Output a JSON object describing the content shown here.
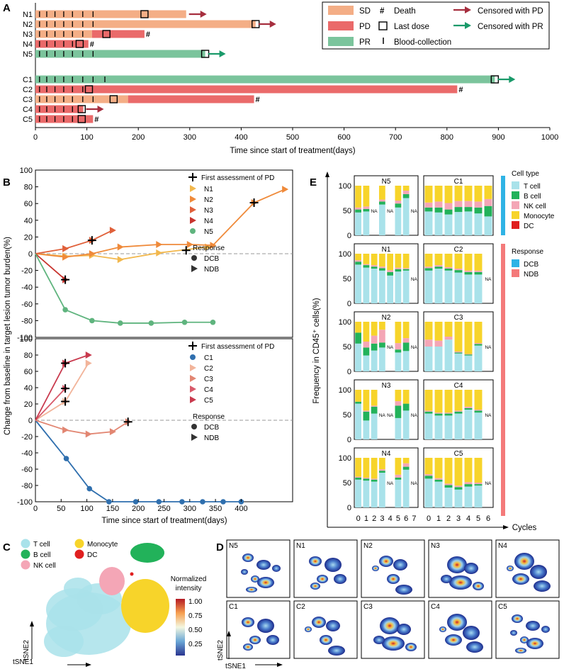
{
  "colors": {
    "SD": "#f4ae86",
    "PD": "#ea6a6a",
    "PR": "#7bc49c",
    "censoredPD": "#a62e3e",
    "censoredPR": "#1a9a6a",
    "dcb": "#3b7bb5",
    "tcell": "#a9e2ea",
    "bcell": "#22b25a",
    "nkcell": "#f4a6b6",
    "monocyte": "#f7d42a",
    "dc": "#e02020",
    "dcbBar": "#2fb3e5",
    "ndbBar": "#f47a7a"
  },
  "panels": {
    "A": "A",
    "B": "B",
    "C": "C",
    "D": "D",
    "E": "E"
  },
  "chart_data": [
    {
      "id": "A",
      "type": "swimmer",
      "xlabel": "Time since start of treatment(days)",
      "xlim": [
        0,
        1000
      ],
      "xticks": [
        "0",
        "100",
        "200",
        "300",
        "400",
        "500",
        "600",
        "700",
        "800",
        "900",
        "1000"
      ],
      "legend": {
        "SD": "SD",
        "PD": "PD",
        "PR": "PR",
        "death": "Death",
        "death_symbol": "#",
        "last_dose": "Last dose",
        "blood": "Blood-collection",
        "cens_pd": "Censored with PD",
        "cens_pr": "Censored with PR"
      },
      "patients": [
        {
          "name": "N1",
          "segments": [
            {
              "s": "SD",
              "from": 0,
              "to": 293
            }
          ],
          "last_dose": 212,
          "end": "censoredPD",
          "blood": [
            8,
            22,
            38,
            55,
            72,
            92,
            112
          ]
        },
        {
          "name": "N2",
          "segments": [
            {
              "s": "SD",
              "from": 0,
              "to": 428
            }
          ],
          "last_dose": 428,
          "end": "censoredPD",
          "blood": [
            8,
            22,
            38,
            55,
            72,
            92,
            112
          ]
        },
        {
          "name": "N3",
          "segments": [
            {
              "s": "SD",
              "from": 0,
              "to": 110
            },
            {
              "s": "PD",
              "from": 110,
              "to": 212
            }
          ],
          "last_dose": 138,
          "end": "death",
          "blood": [
            8,
            22,
            38,
            55,
            72,
            92
          ]
        },
        {
          "name": "N4",
          "segments": [
            {
              "s": "PD",
              "from": 0,
              "to": 103
            }
          ],
          "last_dose": 86,
          "end": "death",
          "blood": [
            8,
            22,
            38,
            55,
            72
          ]
        },
        {
          "name": "N5",
          "segments": [
            {
              "s": "PR",
              "from": 0,
              "to": 330
            }
          ],
          "last_dose": 330,
          "end": "censoredPR",
          "blood": [
            8,
            22,
            38,
            55,
            72,
            92,
            112
          ]
        },
        {
          "name": "C1",
          "segments": [
            {
              "s": "PR",
              "from": 0,
              "to": 893
            }
          ],
          "last_dose": 893,
          "end": "censoredPR",
          "blood": [
            8,
            22,
            38,
            55,
            72,
            92,
            112,
            135
          ]
        },
        {
          "name": "C2",
          "segments": [
            {
              "s": "PD",
              "from": 0,
              "to": 820
            }
          ],
          "last_dose": 104,
          "end": "death",
          "blood": [
            8,
            22,
            38,
            55,
            72,
            92
          ]
        },
        {
          "name": "C3",
          "segments": [
            {
              "s": "SD",
              "from": 0,
              "to": 180
            },
            {
              "s": "PD",
              "from": 180,
              "to": 425
            }
          ],
          "last_dose": 152,
          "end": "death",
          "blood": [
            8,
            22,
            38,
            55,
            72,
            92,
            112
          ]
        },
        {
          "name": "C4",
          "segments": [
            {
              "s": "PD",
              "from": 0,
              "to": 93
            }
          ],
          "last_dose": 90,
          "end": "censoredPD",
          "blood": [
            8,
            22,
            38,
            55,
            72
          ]
        },
        {
          "name": "C5",
          "segments": [
            {
              "s": "PD",
              "from": 0,
              "to": 112
            }
          ],
          "last_dose": 90,
          "end": "death",
          "blood": [
            8,
            22,
            38,
            55,
            72
          ]
        }
      ]
    },
    {
      "id": "B",
      "type": "line",
      "ylabel": "Change from baseline in target lesion tumor burden(%)",
      "xlabel": "Time since start of treatment(days)",
      "xlim": [
        0,
        500
      ],
      "ylim": [
        -100,
        100
      ],
      "yticks": [
        "100",
        "80",
        "60",
        "40",
        "20",
        "0",
        "-20",
        "-40",
        "-60",
        "-80",
        "-100"
      ],
      "xticks": [
        "0",
        "50",
        "100",
        "150",
        "200",
        "250",
        "300",
        "350",
        "400"
      ],
      "xticks_values": [
        0,
        50,
        100,
        150,
        200,
        250,
        300,
        350,
        400
      ],
      "legend_first": "First assessment of PD",
      "response_title": "Response",
      "dcb": "DCB",
      "ndb": "NDB",
      "top": {
        "series": [
          {
            "name": "N1",
            "color": "#f2b84e",
            "marker": "ndb",
            "x": [
              0,
              58,
              110,
              165,
              240,
              335
            ],
            "y": [
              0,
              -3,
              -2,
              -7,
              1,
              8
            ],
            "pd": null
          },
          {
            "name": "N2",
            "color": "#ef8a3a",
            "marker": "ndb",
            "x": [
              0,
              58,
              110,
              165,
              240,
              300,
              345,
              425,
              485
            ],
            "y": [
              0,
              -4,
              0,
              8,
              11,
              11,
              10,
              61,
              77
            ],
            "pd": [
              425,
              61
            ]
          },
          {
            "name": "N3",
            "color": "#e0603a",
            "marker": "ndb",
            "x": [
              0,
              58,
              110,
              150
            ],
            "y": [
              0,
              6,
              16,
              28
            ],
            "pd": [
              110,
              16
            ]
          },
          {
            "name": "N4",
            "color": "#c8342e",
            "marker": "ndb",
            "x": [
              0,
              58
            ],
            "y": [
              0,
              -31
            ],
            "pd": [
              58,
              -31
            ]
          },
          {
            "name": "N5",
            "color": "#5fb47e",
            "marker": "dcb",
            "x": [
              0,
              58,
              110,
              165,
              225,
              290,
              345
            ],
            "y": [
              0,
              -67,
              -80,
              -83,
              -83,
              -82,
              -82
            ],
            "pd": null
          }
        ],
        "extra_pd": [
          [
            293,
            4
          ]
        ]
      },
      "bottom": {
        "series": [
          {
            "name": "C1",
            "color": "#2f6fae",
            "marker": "dcb",
            "x": [
              0,
              60,
              105,
              143,
              195,
              240,
              285,
              325,
              365,
              400
            ],
            "y": [
              0,
              -47,
              -84,
              -100,
              -100,
              -100,
              -100,
              -100,
              -100,
              -100
            ],
            "pd": null
          },
          {
            "name": "C2",
            "color": "#f2b49a",
            "marker": "ndb",
            "x": [
              0,
              58,
              103
            ],
            "y": [
              0,
              23,
              70
            ],
            "pd": [
              58,
              23
            ]
          },
          {
            "name": "C3",
            "color": "#e28672",
            "marker": "ndb",
            "x": [
              0,
              58,
              103,
              150,
              180
            ],
            "y": [
              0,
              -12,
              -17,
              -14,
              -2
            ],
            "pd": [
              180,
              -2
            ]
          },
          {
            "name": "C4",
            "color": "#d85a6a",
            "marker": "ndb",
            "x": [
              0,
              58
            ],
            "y": [
              0,
              39
            ],
            "pd": [
              58,
              39
            ]
          },
          {
            "name": "C5",
            "color": "#c93a4e",
            "marker": "ndb",
            "x": [
              0,
              58,
              103
            ],
            "y": [
              0,
              70,
              80
            ],
            "pd": [
              58,
              70
            ]
          }
        ]
      }
    },
    {
      "id": "E",
      "type": "stacked-bar",
      "ylabel": "Frequency in CD45⁺ cells(%)",
      "xlabel": "Cycles",
      "cycles_left": [
        "0",
        "1",
        "2",
        "3",
        "4",
        "5",
        "6",
        "7"
      ],
      "cycles_right": [
        "0",
        "1",
        "2",
        "3",
        "4",
        "5",
        "6"
      ],
      "yticks": [
        "0",
        "50",
        "100"
      ],
      "na": "NA",
      "legend": {
        "cell_type_title": "Cell type",
        "cell_types": [
          "T cell",
          "B cell",
          "NK cell",
          "Monocyte",
          "DC"
        ],
        "response_title": "Response",
        "responses": [
          "DCB",
          "NDB"
        ]
      },
      "panels": [
        {
          "name": "N5",
          "bars": [
            [
              46,
              6,
              4,
              44,
              0
            ],
            [
              48,
              5,
              5,
              42,
              0
            ],
            null,
            [
              62,
              6,
              4,
              28,
              0
            ],
            null,
            [
              56,
              8,
              6,
              30,
              0
            ],
            [
              75,
              8,
              7,
              10,
              0
            ],
            null
          ]
        },
        {
          "name": "C1",
          "bars": [
            [
              48,
              8,
              10,
              34,
              0
            ],
            [
              46,
              10,
              12,
              32,
              0
            ],
            [
              42,
              10,
              13,
              35,
              0
            ],
            [
              47,
              10,
              12,
              31,
              0
            ],
            [
              48,
              9,
              12,
              31,
              0
            ],
            [
              44,
              12,
              12,
              32,
              0
            ],
            [
              38,
              21,
              14,
              27,
              0
            ]
          ]
        },
        {
          "name": "N1",
          "bars": [
            [
              78,
              6,
              3,
              13,
              0
            ],
            [
              72,
              5,
              2,
              21,
              0
            ],
            [
              70,
              4,
              3,
              23,
              0
            ],
            [
              66,
              5,
              3,
              26,
              0
            ],
            [
              56,
              7,
              4,
              33,
              0
            ],
            [
              64,
              5,
              3,
              28,
              0
            ],
            [
              66,
              3,
              2,
              29,
              0
            ],
            null
          ]
        },
        {
          "name": "C2",
          "bars": [
            [
              66,
              5,
              3,
              26,
              0
            ],
            [
              70,
              4,
              3,
              23,
              0
            ],
            [
              66,
              4,
              3,
              27,
              0
            ],
            [
              62,
              5,
              3,
              30,
              0
            ],
            [
              58,
              5,
              3,
              34,
              0
            ],
            [
              58,
              5,
              3,
              34,
              0
            ],
            null
          ]
        },
        {
          "name": "N2",
          "bars": [
            [
              56,
              22,
              0,
              22,
              0
            ],
            [
              32,
              16,
              12,
              40,
              0
            ],
            [
              42,
              14,
              16,
              28,
              0
            ],
            [
              48,
              10,
              26,
              16,
              0
            ],
            null,
            [
              38,
              6,
              13,
              43,
              0
            ],
            [
              41,
              17,
              9,
              33,
              0
            ],
            null
          ]
        },
        {
          "name": "C3",
          "bars": [
            [
              50,
              0,
              14,
              36,
              0
            ],
            [
              50,
              0,
              12,
              38,
              0
            ],
            [
              64,
              0,
              6,
              30,
              0
            ],
            [
              36,
              2,
              2,
              60,
              0
            ],
            [
              32,
              2,
              1,
              65,
              0
            ],
            [
              52,
              3,
              2,
              43,
              0
            ],
            null
          ]
        },
        {
          "name": "N3",
          "bars": [
            [
              72,
              4,
              0,
              24,
              0
            ],
            [
              38,
              18,
              2,
              42,
              0
            ],
            [
              52,
              14,
              2,
              32,
              0
            ],
            null,
            null,
            [
              43,
              25,
              9,
              23,
              0
            ],
            [
              58,
              14,
              0,
              28,
              0
            ],
            null
          ]
        },
        {
          "name": "C4",
          "bars": [
            [
              52,
              4,
              2,
              42,
              0
            ],
            [
              48,
              4,
              2,
              46,
              0
            ],
            [
              48,
              4,
              2,
              46,
              0
            ],
            [
              52,
              4,
              2,
              42,
              0
            ],
            [
              60,
              3,
              3,
              34,
              0
            ],
            [
              54,
              4,
              2,
              40,
              0
            ],
            null
          ]
        },
        {
          "name": "N4",
          "bars": [
            [
              56,
              4,
              2,
              38,
              0
            ],
            [
              54,
              4,
              2,
              40,
              0
            ],
            [
              52,
              4,
              2,
              42,
              0
            ],
            [
              70,
              4,
              3,
              23,
              0
            ],
            null,
            [
              56,
              4,
              6,
              34,
              0
            ],
            [
              76,
              6,
              7,
              11,
              0
            ],
            null
          ]
        },
        {
          "name": "C5",
          "bars": [
            [
              58,
              6,
              3,
              33,
              0
            ],
            [
              52,
              4,
              3,
              41,
              0
            ],
            [
              40,
              5,
              3,
              52,
              0
            ],
            [
              36,
              5,
              3,
              56,
              0
            ],
            [
              42,
              5,
              4,
              49,
              0
            ],
            [
              44,
              3,
              3,
              50,
              0
            ],
            null
          ]
        }
      ]
    },
    {
      "id": "C",
      "type": "scatter",
      "xlabel": "tSNE1",
      "ylabel": "tSNE2",
      "legend": [
        "T cell",
        "B cell",
        "NK cell",
        "Monocyte",
        "DC"
      ]
    },
    {
      "id": "D",
      "type": "heatmap",
      "xlabel": "tSNE1",
      "ylabel": "tSNE2",
      "colorbar_title": [
        "Normalized",
        "intensity"
      ],
      "colorbar_ticks": [
        "1.00",
        "0.75",
        "0.50",
        "0.25"
      ],
      "panels": [
        "N5",
        "N1",
        "N2",
        "N3",
        "N4",
        "C1",
        "C2",
        "C3",
        "C4",
        "C5"
      ]
    }
  ]
}
